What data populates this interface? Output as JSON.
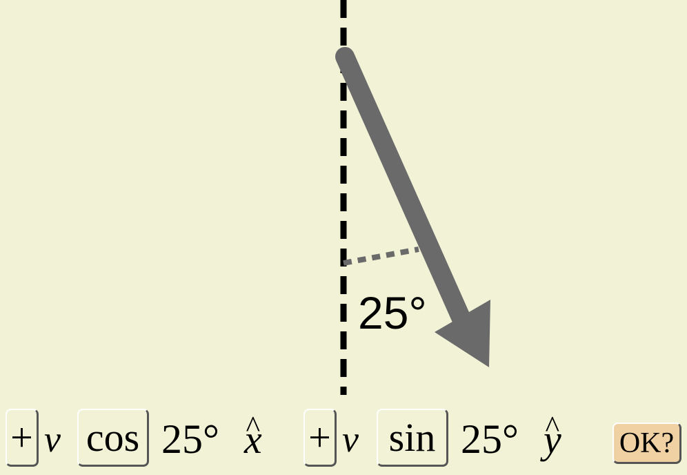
{
  "diagram": {
    "angle_label": "25°",
    "angle_degrees": 25,
    "colors": {
      "background": "#f1f2d6",
      "vector": "#6a6a6a",
      "reference_line": "#000000",
      "button_ok": "#f0d1a3"
    }
  },
  "equation": {
    "x_component": {
      "sign_label": "+",
      "variable": "v",
      "trig_label": "cos",
      "angle": "25°",
      "unit_vector_letter": "x",
      "unit_vector_hat": "^"
    },
    "y_component": {
      "sign_label": "+",
      "variable": "v",
      "trig_label": "sin",
      "angle": "25°",
      "unit_vector_letter": "y",
      "unit_vector_hat": "^"
    }
  },
  "ok_button": {
    "label": "OK?"
  }
}
